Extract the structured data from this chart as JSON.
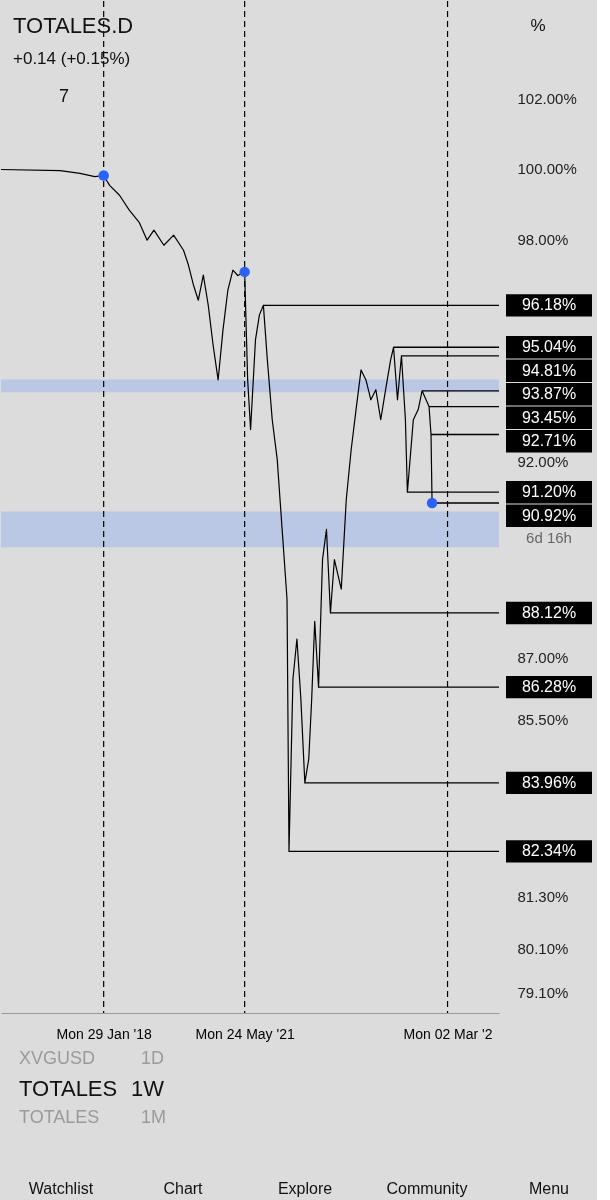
{
  "chart_data": {
    "type": "line",
    "title": "TOTALES.D",
    "x": [
      "2015-08-31",
      "2017-01-21",
      "2017-07-10",
      "2017-11-14",
      "2018-01-29",
      "2018-03-21",
      "2018-06-14",
      "2018-09-06",
      "2018-11-30",
      "2019-02-06",
      "2019-04-06",
      "2019-06-30",
      "2019-09-22",
      "2019-12-16",
      "2020-01-27",
      "2020-03-10",
      "2020-04-21",
      "2020-06-03",
      "2020-07-15",
      "2020-08-26",
      "2020-10-08",
      "2020-11-19",
      "2020-12-31",
      "2021-02-12",
      "2021-03-26",
      "2021-05-24",
      "2021-06-19",
      "2021-07-14",
      "2021-08-25",
      "2021-09-28",
      "2021-11-01",
      "2021-12-05",
      "2022-01-16",
      "2022-02-28",
      "2022-04-11",
      "2022-05-23",
      "2022-06-09",
      "2022-07-13",
      "2022-08-16",
      "2022-09-19",
      "2022-10-23",
      "2022-11-26",
      "2022-12-21",
      "2023-01-16",
      "2023-02-18",
      "2023-03-24",
      "2023-04-27",
      "2023-05-31",
      "2023-07-04",
      "2023-09-01",
      "2023-10-14",
      "2023-11-25",
      "2024-01-06",
      "2024-02-18",
      "2024-03-31",
      "2024-05-12",
      "2024-06-24",
      "2024-08-05",
      "2024-09-16",
      "2024-10-29",
      "2024-11-23",
      "2024-12-27",
      "2025-01-30",
      "2025-03-05",
      "2025-03-22",
      "2025-05-12",
      "2025-06-23",
      "2025-07-26",
      "2025-09-24",
      "2025-10-11",
      "2025-10-20"
    ],
    "series": [
      {
        "color": "#000000",
        "values": [
          99.97,
          99.94,
          99.86,
          99.77,
          99.8,
          99.52,
          99.24,
          98.82,
          98.48,
          97.98,
          98.26,
          97.84,
          98.12,
          97.7,
          97.29,
          96.74,
          96.32,
          97.01,
          96.19,
          95.1,
          94.16,
          95.51,
          96.6,
          97.15,
          97.0,
          97.1,
          94.16,
          92.84,
          95.24,
          95.92,
          96.18,
          94.7,
          93.1,
          92.05,
          90.24,
          88.47,
          82.34,
          86.48,
          87.47,
          85.99,
          83.96,
          84.54,
          85.99,
          87.91,
          86.28,
          89.47,
          90.24,
          88.12,
          89.47,
          88.72,
          91.01,
          92.31,
          93.37,
          94.43,
          94.16,
          93.63,
          93.9,
          93.1,
          93.9,
          94.7,
          95.04,
          93.63,
          94.81,
          93.1,
          91.2,
          93.1,
          93.37,
          93.87,
          93.45,
          92.71,
          90.92
        ]
      },
      {
        "type": "scatter",
        "color": "#2962ff",
        "x": [
          "2018-01-29",
          "2021-05-24",
          "2025-10-20"
        ],
        "values": [
          99.8,
          97.1,
          90.92
        ]
      }
    ],
    "log": "y",
    "line_style": "solid",
    "xlim": [
      "2015-08-31",
      "2027-05-18"
    ],
    "xticks": [
      {
        "value": "2018-01-29",
        "label": "Mon 29 Jan '18"
      },
      {
        "value": "2021-05-24",
        "label": "Mon 24 May '21"
      },
      {
        "value": "2026-03-02",
        "label": "Mon 02 Mar '2"
      }
    ],
    "ylim": [
      78.64,
      104.88
    ],
    "yticks": [
      {
        "value": 102,
        "label": "102.00%"
      },
      {
        "value": 100,
        "label": "100.00%"
      },
      {
        "value": 98,
        "label": "98.00%"
      },
      {
        "value": 92,
        "label": "92.00%"
      },
      {
        "value": 87,
        "label": "87.00%"
      },
      {
        "value": 85.5,
        "label": "85.50%"
      },
      {
        "value": 81.3,
        "label": "81.30%"
      },
      {
        "value": 80.1,
        "label": "80.10%"
      },
      {
        "value": 79.1,
        "label": "79.10%"
      }
    ],
    "ref_lines": [
      {
        "axis": "x",
        "value": "2018-01-29",
        "color": "#000000",
        "line_style": "dashed"
      },
      {
        "axis": "x",
        "value": "2021-05-24",
        "color": "#000000",
        "line_style": "dashed"
      },
      {
        "axis": "x",
        "value": "2026-03-02",
        "color": "#000000",
        "line_style": "dashed"
      },
      {
        "axis": "y",
        "value": 96.18,
        "label": "96.18%",
        "color": "#000000"
      },
      {
        "axis": "y",
        "value": 95.04,
        "label": "95.04%",
        "color": "#000000"
      },
      {
        "axis": "y",
        "value": 94.81,
        "label": "94.81%",
        "color": "#000000"
      },
      {
        "axis": "y",
        "value": 93.87,
        "label": "93.87%",
        "color": "#000000"
      },
      {
        "axis": "y",
        "value": 93.45,
        "label": "93.45%",
        "color": "#000000"
      },
      {
        "axis": "y",
        "value": 92.71,
        "label": "92.71%",
        "color": "#000000"
      },
      {
        "axis": "y",
        "value": 91.2,
        "label": "91.20%",
        "color": "#000000"
      },
      {
        "axis": "y",
        "value": 90.92,
        "label": "90.92%",
        "color": "#000000"
      },
      {
        "axis": "y",
        "value": 88.12,
        "label": "88.12%",
        "color": "#000000"
      },
      {
        "axis": "y",
        "value": 86.28,
        "label": "86.28%",
        "color": "#000000"
      },
      {
        "axis": "y",
        "value": 83.96,
        "label": "83.96%",
        "color": "#000000"
      },
      {
        "axis": "y",
        "value": 82.34,
        "label": "82.34%",
        "color": "#000000"
      }
    ],
    "bands": [
      {
        "axis": "y",
        "from": 93.83,
        "to": 94.17,
        "color": "#b4c3e6"
      },
      {
        "axis": "y",
        "from": 89.78,
        "to": 90.7,
        "color": "#b4c3e6"
      }
    ],
    "annotations": [
      "+0.14 (+0.15%)",
      "7",
      "%",
      "6d 16h",
      "XVGUSD",
      "1D",
      "TOTALES",
      "1W",
      "TOTALES",
      "1M",
      "Watchlist",
      "Chart",
      "Explore",
      "Community",
      "Menu"
    ]
  }
}
